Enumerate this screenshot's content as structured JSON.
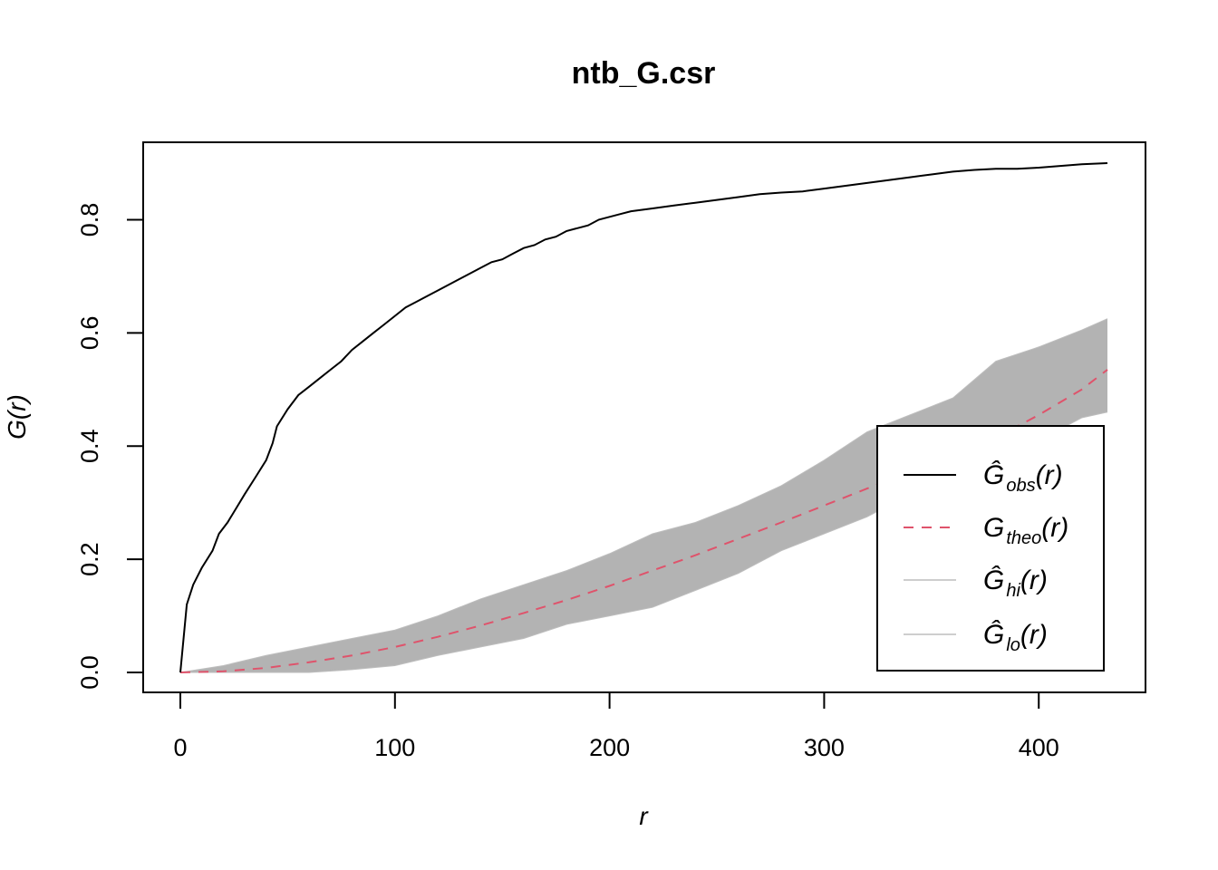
{
  "chart_data": {
    "type": "line",
    "title": "ntb_G.csr",
    "xlabel": "r",
    "ylabel": "G(r)",
    "xlim": [
      0,
      432
    ],
    "ylim": [
      0,
      0.9
    ],
    "x_ticks": [
      "0",
      "100",
      "200",
      "300",
      "400"
    ],
    "y_ticks": [
      "0.0",
      "0.2",
      "0.4",
      "0.6",
      "0.8"
    ],
    "legend_position": "bottom-right",
    "grid": false,
    "series": [
      {
        "name": "obs",
        "label": "Ĝ",
        "sub": "obs",
        "style": "solid",
        "color": "#000000",
        "x": [
          0,
          3,
          6,
          10,
          15,
          18,
          22,
          26,
          30,
          35,
          40,
          43,
          45,
          50,
          55,
          60,
          65,
          70,
          75,
          80,
          85,
          90,
          95,
          100,
          105,
          110,
          115,
          120,
          125,
          130,
          135,
          140,
          145,
          150,
          155,
          160,
          165,
          170,
          175,
          180,
          185,
          190,
          195,
          200,
          205,
          210,
          220,
          230,
          240,
          250,
          260,
          270,
          280,
          290,
          300,
          310,
          320,
          330,
          340,
          350,
          360,
          370,
          380,
          390,
          400,
          410,
          420,
          432
        ],
        "values": [
          0.0,
          0.12,
          0.155,
          0.185,
          0.215,
          0.245,
          0.265,
          0.29,
          0.315,
          0.345,
          0.375,
          0.405,
          0.435,
          0.465,
          0.49,
          0.505,
          0.52,
          0.535,
          0.55,
          0.57,
          0.585,
          0.6,
          0.615,
          0.63,
          0.645,
          0.655,
          0.665,
          0.675,
          0.685,
          0.695,
          0.705,
          0.715,
          0.725,
          0.73,
          0.74,
          0.75,
          0.755,
          0.765,
          0.77,
          0.78,
          0.785,
          0.79,
          0.8,
          0.805,
          0.81,
          0.815,
          0.82,
          0.825,
          0.83,
          0.835,
          0.84,
          0.845,
          0.848,
          0.85,
          0.855,
          0.86,
          0.865,
          0.87,
          0.875,
          0.88,
          0.885,
          0.888,
          0.89,
          0.89,
          0.892,
          0.895,
          0.898,
          0.9
        ]
      },
      {
        "name": "theo",
        "label": "G",
        "sub": "theo",
        "style": "dashed",
        "color": "#df536b",
        "x": [
          0,
          20,
          40,
          60,
          80,
          100,
          120,
          140,
          160,
          180,
          200,
          220,
          240,
          260,
          280,
          300,
          320,
          340,
          360,
          380,
          400,
          420,
          432
        ],
        "values": [
          0.0,
          0.002,
          0.008,
          0.018,
          0.03,
          0.045,
          0.063,
          0.083,
          0.105,
          0.128,
          0.153,
          0.18,
          0.207,
          0.236,
          0.265,
          0.295,
          0.325,
          0.355,
          0.385,
          0.415,
          0.455,
          0.5,
          0.535
        ]
      },
      {
        "name": "hi",
        "label": "Ĝ",
        "sub": "hi",
        "style": "solid",
        "color": "#bebebe",
        "x": [
          0,
          20,
          40,
          60,
          80,
          100,
          120,
          140,
          160,
          180,
          200,
          220,
          240,
          260,
          280,
          300,
          320,
          340,
          360,
          380,
          400,
          420,
          432
        ],
        "values": [
          0.0,
          0.012,
          0.03,
          0.045,
          0.06,
          0.075,
          0.1,
          0.13,
          0.155,
          0.18,
          0.21,
          0.245,
          0.265,
          0.295,
          0.33,
          0.375,
          0.425,
          0.455,
          0.485,
          0.55,
          0.575,
          0.605,
          0.625
        ]
      },
      {
        "name": "lo",
        "label": "Ĝ",
        "sub": "lo",
        "style": "solid",
        "color": "#bebebe",
        "x": [
          0,
          20,
          40,
          60,
          80,
          100,
          120,
          140,
          160,
          180,
          200,
          220,
          240,
          260,
          280,
          300,
          320,
          340,
          360,
          380,
          400,
          420,
          432
        ],
        "values": [
          0.0,
          0.0,
          0.0,
          0.0,
          0.005,
          0.012,
          0.03,
          0.045,
          0.06,
          0.085,
          0.1,
          0.115,
          0.145,
          0.175,
          0.215,
          0.245,
          0.275,
          0.315,
          0.345,
          0.38,
          0.41,
          0.45,
          0.46
        ]
      }
    ]
  }
}
